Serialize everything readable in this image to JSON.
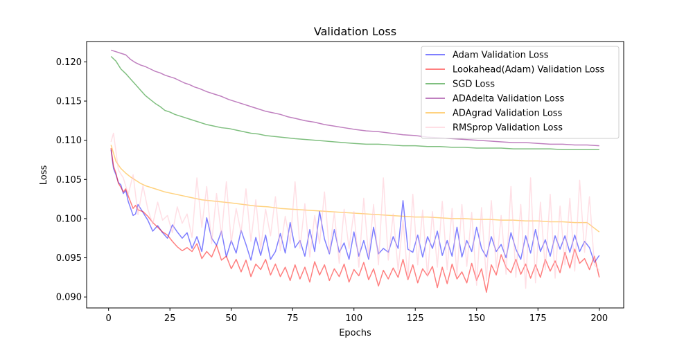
{
  "chart_data": {
    "type": "line",
    "title": "Validation Loss",
    "xlabel": "Epochs",
    "ylabel": "Loss",
    "xlim": [
      -8.95,
      209.95
    ],
    "ylim": [
      0.0886,
      0.1226
    ],
    "xticks": [
      0,
      25,
      50,
      75,
      100,
      125,
      150,
      175,
      200
    ],
    "yticks": [
      0.09,
      0.095,
      0.1,
      0.105,
      0.11,
      0.115,
      0.12
    ],
    "ytick_labels": [
      "0.090",
      "0.095",
      "0.100",
      "0.105",
      "0.110",
      "0.115",
      "0.120"
    ],
    "grid": false,
    "legend_position": "upper right",
    "series": [
      {
        "name": "Adam Validation Loss",
        "color": "#0000ff",
        "alpha": 0.5,
        "x": [
          1,
          2,
          3,
          4,
          5,
          6,
          7,
          8,
          9,
          10,
          11,
          12,
          14,
          16,
          18,
          20,
          22,
          24,
          26,
          28,
          30,
          32,
          34,
          36,
          38,
          40,
          42,
          44,
          46,
          48,
          50,
          52,
          54,
          56,
          58,
          60,
          62,
          64,
          66,
          68,
          70,
          72,
          74,
          76,
          78,
          80,
          82,
          84,
          86,
          88,
          90,
          92,
          94,
          96,
          98,
          100,
          102,
          104,
          106,
          108,
          110,
          112,
          114,
          116,
          118,
          120,
          122,
          124,
          126,
          128,
          130,
          132,
          134,
          136,
          138,
          140,
          142,
          144,
          146,
          148,
          150,
          152,
          154,
          156,
          158,
          160,
          162,
          164,
          166,
          168,
          170,
          172,
          174,
          176,
          178,
          180,
          182,
          184,
          186,
          188,
          190,
          192,
          194,
          196,
          198,
          200
        ],
        "values": [
          0.1088,
          0.1064,
          0.1056,
          0.1046,
          0.1043,
          0.1032,
          0.1036,
          0.1022,
          0.1013,
          0.1004,
          0.1006,
          0.1018,
          0.1008,
          0.0998,
          0.0984,
          0.0991,
          0.0982,
          0.0975,
          0.0992,
          0.0983,
          0.0975,
          0.0982,
          0.0962,
          0.0977,
          0.0958,
          0.1001,
          0.0975,
          0.0966,
          0.0984,
          0.0951,
          0.0972,
          0.0956,
          0.0985,
          0.0967,
          0.0947,
          0.0976,
          0.0953,
          0.0979,
          0.0948,
          0.0958,
          0.0981,
          0.0956,
          0.0995,
          0.0963,
          0.0972,
          0.0952,
          0.0986,
          0.0958,
          0.1009,
          0.0974,
          0.0955,
          0.0986,
          0.0957,
          0.0969,
          0.0948,
          0.0983,
          0.0952,
          0.0972,
          0.0948,
          0.0989,
          0.0955,
          0.0962,
          0.0957,
          0.0977,
          0.0962,
          0.1023,
          0.0961,
          0.0957,
          0.0979,
          0.0951,
          0.0977,
          0.0962,
          0.0984,
          0.0953,
          0.0972,
          0.0952,
          0.0989,
          0.0951,
          0.0972,
          0.0958,
          0.0989,
          0.0962,
          0.0951,
          0.0977,
          0.0958,
          0.0967,
          0.095,
          0.0982,
          0.0961,
          0.0948,
          0.0978,
          0.0956,
          0.0986,
          0.0958,
          0.0973,
          0.0952,
          0.0978,
          0.0961,
          0.0978,
          0.0957,
          0.0979,
          0.0958,
          0.0971,
          0.0963,
          0.0944,
          0.0953
        ]
      },
      {
        "name": "Lookahead(Adam) Validation Loss",
        "color": "#ff0000",
        "alpha": 0.5,
        "x": [
          1,
          2,
          3,
          4,
          5,
          6,
          7,
          8,
          9,
          10,
          11,
          12,
          14,
          16,
          18,
          20,
          22,
          24,
          26,
          28,
          30,
          32,
          34,
          36,
          38,
          40,
          42,
          44,
          46,
          48,
          50,
          52,
          54,
          56,
          58,
          60,
          62,
          64,
          66,
          68,
          70,
          72,
          74,
          76,
          78,
          80,
          82,
          84,
          86,
          88,
          90,
          92,
          94,
          96,
          98,
          100,
          102,
          104,
          106,
          108,
          110,
          112,
          114,
          116,
          118,
          120,
          122,
          124,
          126,
          128,
          130,
          132,
          134,
          136,
          138,
          140,
          142,
          144,
          146,
          148,
          150,
          152,
          154,
          156,
          158,
          160,
          162,
          164,
          166,
          168,
          170,
          172,
          174,
          176,
          178,
          180,
          182,
          184,
          186,
          188,
          190,
          192,
          194,
          196,
          198,
          200
        ],
        "values": [
          0.109,
          0.1067,
          0.1058,
          0.1045,
          0.104,
          0.1034,
          0.1038,
          0.1029,
          0.1021,
          0.1013,
          0.1017,
          0.1011,
          0.1009,
          0.1003,
          0.0995,
          0.0989,
          0.0983,
          0.0979,
          0.0971,
          0.0964,
          0.0959,
          0.0963,
          0.0958,
          0.0968,
          0.0949,
          0.0958,
          0.0951,
          0.0966,
          0.0947,
          0.0952,
          0.0936,
          0.0948,
          0.0932,
          0.0947,
          0.0926,
          0.0942,
          0.0935,
          0.0948,
          0.0928,
          0.0942,
          0.0926,
          0.0938,
          0.0921,
          0.0941,
          0.0923,
          0.0938,
          0.0919,
          0.0945,
          0.0928,
          0.0941,
          0.0921,
          0.0936,
          0.0926,
          0.0942,
          0.0919,
          0.0935,
          0.0927,
          0.0944,
          0.0922,
          0.0936,
          0.0914,
          0.0934,
          0.0923,
          0.0937,
          0.0925,
          0.0948,
          0.0922,
          0.0941,
          0.0918,
          0.0936,
          0.0927,
          0.0939,
          0.0912,
          0.0938,
          0.0917,
          0.0942,
          0.0923,
          0.0932,
          0.0918,
          0.0943,
          0.0921,
          0.0936,
          0.0906,
          0.0941,
          0.0928,
          0.0954,
          0.0938,
          0.0931,
          0.0948,
          0.0929,
          0.0942,
          0.0924,
          0.0941,
          0.0925,
          0.0948,
          0.0933,
          0.0946,
          0.0931,
          0.0957,
          0.0937,
          0.0961,
          0.0943,
          0.0949,
          0.0935,
          0.0952,
          0.0925
        ]
      },
      {
        "name": "SGD Loss",
        "color": "#008000",
        "alpha": 0.5,
        "x": [
          1,
          3,
          5,
          7,
          9,
          11,
          13,
          15,
          17,
          19,
          21,
          23,
          25,
          27,
          29,
          31,
          33,
          35,
          37,
          40,
          43,
          46,
          49,
          52,
          55,
          58,
          61,
          64,
          67,
          70,
          73,
          76,
          80,
          84,
          88,
          92,
          96,
          100,
          105,
          110,
          115,
          120,
          125,
          130,
          135,
          140,
          145,
          150,
          155,
          160,
          165,
          170,
          175,
          180,
          185,
          190,
          195,
          200
        ],
        "values": [
          0.1207,
          0.1201,
          0.1191,
          0.1185,
          0.1178,
          0.1171,
          0.1164,
          0.1157,
          0.1152,
          0.1147,
          0.1143,
          0.1138,
          0.1136,
          0.1133,
          0.1131,
          0.1129,
          0.1127,
          0.1125,
          0.1123,
          0.112,
          0.1118,
          0.1116,
          0.1115,
          0.1113,
          0.1111,
          0.1109,
          0.1108,
          0.1106,
          0.1105,
          0.1104,
          0.1103,
          0.1102,
          0.1101,
          0.11,
          0.1099,
          0.1098,
          0.1097,
          0.1096,
          0.1095,
          0.1095,
          0.1094,
          0.1093,
          0.1093,
          0.1092,
          0.1092,
          0.1091,
          0.1091,
          0.109,
          0.109,
          0.109,
          0.1089,
          0.1089,
          0.1089,
          0.1089,
          0.1088,
          0.1088,
          0.1088,
          0.1088
        ]
      },
      {
        "name": "ADAdelta Validation Loss",
        "color": "#800080",
        "alpha": 0.5,
        "x": [
          1,
          3,
          5,
          7,
          9,
          11,
          13,
          15,
          17,
          19,
          21,
          23,
          25,
          27,
          29,
          31,
          33,
          35,
          37,
          40,
          43,
          46,
          49,
          52,
          55,
          58,
          61,
          64,
          67,
          70,
          73,
          76,
          80,
          84,
          88,
          92,
          96,
          100,
          105,
          110,
          115,
          120,
          125,
          130,
          135,
          140,
          145,
          150,
          155,
          160,
          165,
          170,
          175,
          180,
          185,
          190,
          195,
          200
        ],
        "values": [
          0.1215,
          0.1213,
          0.1211,
          0.1209,
          0.1203,
          0.1199,
          0.1196,
          0.1194,
          0.1191,
          0.1188,
          0.1186,
          0.1183,
          0.1181,
          0.1179,
          0.1176,
          0.1173,
          0.1171,
          0.1168,
          0.1166,
          0.1162,
          0.1159,
          0.1156,
          0.1152,
          0.1149,
          0.1146,
          0.1143,
          0.114,
          0.1137,
          0.1135,
          0.1133,
          0.113,
          0.1128,
          0.1125,
          0.1123,
          0.112,
          0.1118,
          0.1116,
          0.1114,
          0.1112,
          0.1111,
          0.1109,
          0.1107,
          0.1106,
          0.1104,
          0.1103,
          0.1102,
          0.1101,
          0.11,
          0.1099,
          0.1098,
          0.1097,
          0.1097,
          0.1096,
          0.1095,
          0.1095,
          0.1094,
          0.1094,
          0.1093
        ]
      },
      {
        "name": "ADAgrad Validation Loss",
        "color": "#ffa500",
        "alpha": 0.5,
        "x": [
          1,
          3,
          5,
          7,
          9,
          11,
          13,
          15,
          17,
          20,
          23,
          26,
          29,
          32,
          35,
          38,
          41,
          44,
          47,
          50,
          55,
          60,
          65,
          70,
          75,
          80,
          85,
          90,
          95,
          100,
          105,
          110,
          115,
          120,
          125,
          130,
          135,
          140,
          145,
          150,
          155,
          160,
          165,
          170,
          175,
          180,
          185,
          190,
          195,
          200
        ],
        "values": [
          0.1094,
          0.1073,
          0.1064,
          0.1058,
          0.1053,
          0.1049,
          0.1045,
          0.1042,
          0.104,
          0.1037,
          0.1034,
          0.1032,
          0.103,
          0.1028,
          0.1026,
          0.1024,
          0.1023,
          0.1022,
          0.1021,
          0.102,
          0.1018,
          0.1016,
          0.1015,
          0.1013,
          0.1012,
          0.1011,
          0.101,
          0.1009,
          0.1008,
          0.1007,
          0.1006,
          0.1005,
          0.1004,
          0.1003,
          0.1002,
          0.1002,
          0.1001,
          0.1,
          0.1,
          0.0999,
          0.0999,
          0.0998,
          0.0998,
          0.0997,
          0.0997,
          0.0996,
          0.0996,
          0.0995,
          0.0995,
          0.0983
        ]
      },
      {
        "name": "RMSprop Validation Loss",
        "color": "#ffc0cb",
        "alpha": 0.5,
        "x": [
          1,
          2,
          4,
          6,
          8,
          10,
          12,
          14,
          16,
          18,
          20,
          22,
          24,
          26,
          28,
          30,
          32,
          34,
          36,
          38,
          40,
          42,
          44,
          46,
          48,
          50,
          52,
          54,
          56,
          58,
          60,
          62,
          64,
          66,
          68,
          70,
          72,
          74,
          76,
          78,
          80,
          82,
          84,
          86,
          88,
          90,
          92,
          94,
          96,
          98,
          100,
          102,
          104,
          106,
          108,
          110,
          112,
          114,
          116,
          118,
          120,
          122,
          124,
          126,
          128,
          130,
          132,
          134,
          136,
          138,
          140,
          142,
          144,
          146,
          148,
          150,
          152,
          154,
          156,
          158,
          160,
          162,
          164,
          166,
          168,
          170,
          172,
          174,
          176,
          178,
          180,
          182,
          184,
          186,
          188,
          190,
          192,
          194,
          196,
          198,
          200
        ],
        "values": [
          0.1098,
          0.1109,
          0.1062,
          0.1052,
          0.1031,
          0.1056,
          0.1005,
          0.1042,
          0.1012,
          0.0993,
          0.1021,
          0.0998,
          0.1004,
          0.0982,
          0.1015,
          0.0994,
          0.1006,
          0.0976,
          0.1052,
          0.0989,
          0.1041,
          0.0968,
          0.1032,
          0.0978,
          0.1047,
          0.0969,
          0.1013,
          0.0982,
          0.1038,
          0.0971,
          0.1024,
          0.0961,
          0.1012,
          0.0978,
          0.1028,
          0.0959,
          0.1003,
          0.0968,
          0.1047,
          0.0962,
          0.1019,
          0.0951,
          0.1004,
          0.0968,
          0.1034,
          0.0957,
          0.1008,
          0.0943,
          0.1012,
          0.0962,
          0.1009,
          0.0938,
          0.1026,
          0.0951,
          0.1018,
          0.0941,
          0.1052,
          0.0947,
          0.1006,
          0.0934,
          0.0998,
          0.0923,
          0.1031,
          0.0941,
          0.1011,
          0.0926,
          0.1009,
          0.0938,
          0.1022,
          0.0935,
          0.1013,
          0.0927,
          0.1018,
          0.0939,
          0.1008,
          0.0915,
          0.1014,
          0.0921,
          0.1023,
          0.0937,
          0.1004,
          0.0929,
          0.1041,
          0.0925,
          0.1018,
          0.0911,
          0.1052,
          0.0918,
          0.1021,
          0.0935,
          0.1031,
          0.0924,
          0.1016,
          0.0941,
          0.1026,
          0.0933,
          0.1049,
          0.0957,
          0.1028,
          0.0941,
          0.0934
        ]
      }
    ]
  }
}
